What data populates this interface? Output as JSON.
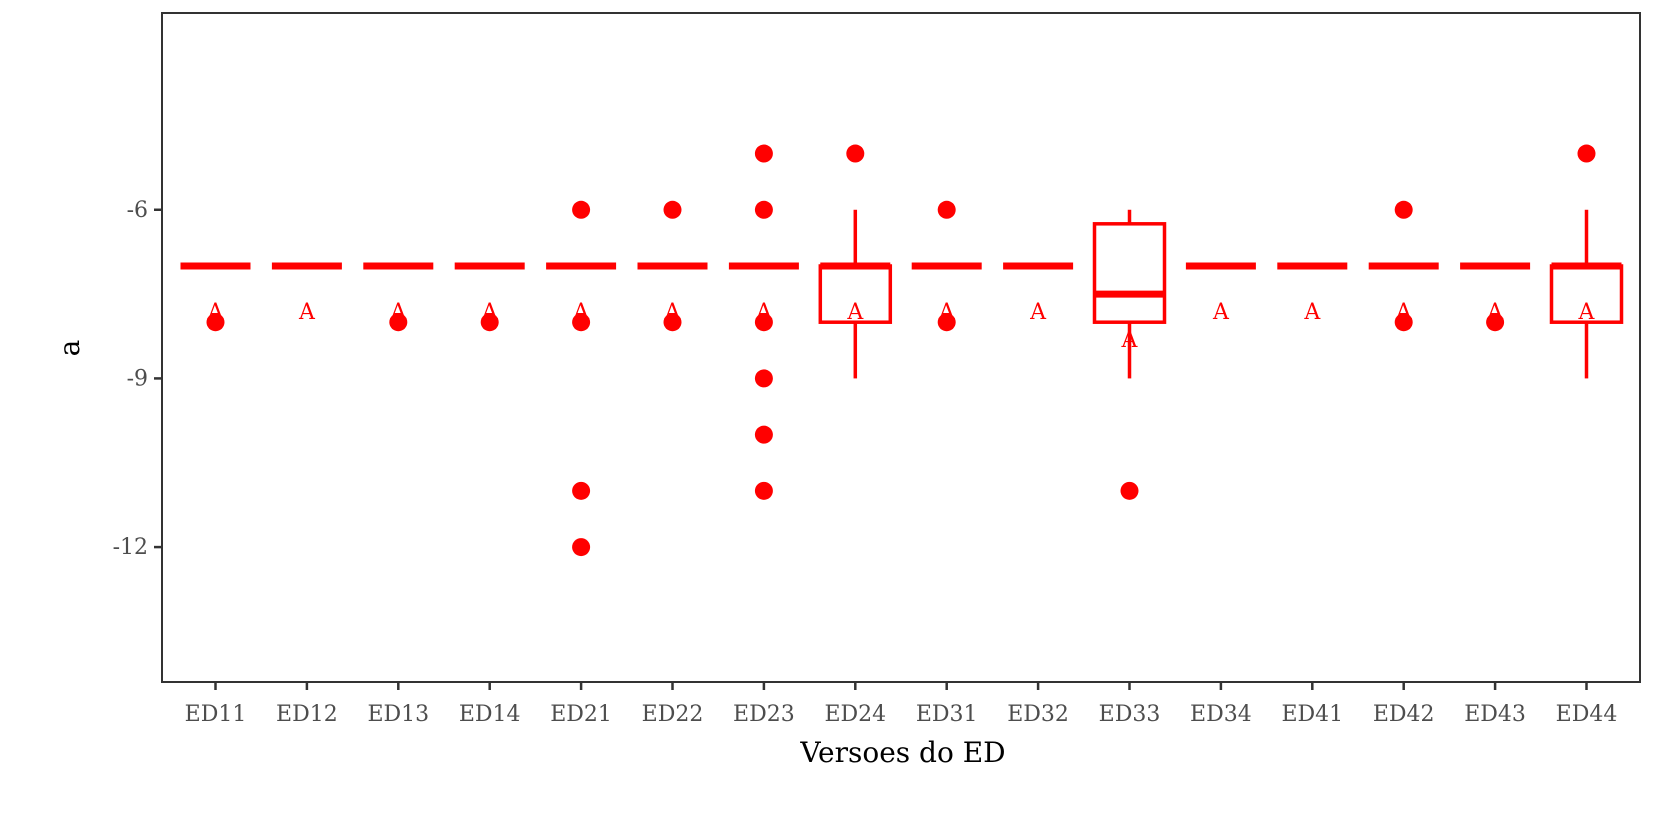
{
  "chart_data": {
    "type": "box",
    "xlabel": "Versoes do ED",
    "ylabel": "a",
    "ylim": [
      -14.4,
      -2.5
    ],
    "yticks": [
      -12,
      -9,
      -6
    ],
    "ytick_labels": [
      "-12",
      "-9",
      "-6"
    ],
    "color": "#ff0000",
    "axis_color": "#333333",
    "groups": [
      {
        "name": "ED11",
        "q1": -7,
        "median": -7,
        "q3": -7,
        "whisker_low": -7,
        "whisker_high": -7,
        "outliers": [
          -8
        ],
        "letter": "A",
        "letter_y": -7.8
      },
      {
        "name": "ED12",
        "q1": -7,
        "median": -7,
        "q3": -7,
        "whisker_low": -7,
        "whisker_high": -7,
        "outliers": [],
        "letter": "A",
        "letter_y": -7.8
      },
      {
        "name": "ED13",
        "q1": -7,
        "median": -7,
        "q3": -7,
        "whisker_low": -7,
        "whisker_high": -7,
        "outliers": [
          -8
        ],
        "letter": "A",
        "letter_y": -7.8
      },
      {
        "name": "ED14",
        "q1": -7,
        "median": -7,
        "q3": -7,
        "whisker_low": -7,
        "whisker_high": -7,
        "outliers": [
          -8
        ],
        "letter": "A",
        "letter_y": -7.8
      },
      {
        "name": "ED21",
        "q1": -7,
        "median": -7,
        "q3": -7,
        "whisker_low": -7,
        "whisker_high": -7,
        "outliers": [
          -6,
          -8,
          -11,
          -12
        ],
        "letter": "A",
        "letter_y": -7.8
      },
      {
        "name": "ED22",
        "q1": -7,
        "median": -7,
        "q3": -7,
        "whisker_low": -7,
        "whisker_high": -7,
        "outliers": [
          -6,
          -8
        ],
        "letter": "A",
        "letter_y": -7.8
      },
      {
        "name": "ED23",
        "q1": -7,
        "median": -7,
        "q3": -7,
        "whisker_low": -7,
        "whisker_high": -7,
        "outliers": [
          -5,
          -6,
          -8,
          -9,
          -10,
          -11
        ],
        "letter": "A",
        "letter_y": -7.8
      },
      {
        "name": "ED24",
        "q1": -8,
        "median": -7,
        "q3": -7,
        "whisker_low": -9,
        "whisker_high": -6,
        "outliers": [
          -5
        ],
        "letter": "A",
        "letter_y": -7.8
      },
      {
        "name": "ED31",
        "q1": -7,
        "median": -7,
        "q3": -7,
        "whisker_low": -7,
        "whisker_high": -7,
        "outliers": [
          -6,
          -8
        ],
        "letter": "A",
        "letter_y": -7.8
      },
      {
        "name": "ED32",
        "q1": -7,
        "median": -7,
        "q3": -7,
        "whisker_low": -7,
        "whisker_high": -7,
        "outliers": [],
        "letter": "A",
        "letter_y": -7.8
      },
      {
        "name": "ED33",
        "q1": -8,
        "median": -7.5,
        "q3": -6.25,
        "whisker_low": -9,
        "whisker_high": -6,
        "outliers": [
          -11
        ],
        "letter": "A",
        "letter_y": -8.3
      },
      {
        "name": "ED34",
        "q1": -7,
        "median": -7,
        "q3": -7,
        "whisker_low": -7,
        "whisker_high": -7,
        "outliers": [],
        "letter": "A",
        "letter_y": -7.8
      },
      {
        "name": "ED41",
        "q1": -7,
        "median": -7,
        "q3": -7,
        "whisker_low": -7,
        "whisker_high": -7,
        "outliers": [],
        "letter": "A",
        "letter_y": -7.8
      },
      {
        "name": "ED42",
        "q1": -7,
        "median": -7,
        "q3": -7,
        "whisker_low": -7,
        "whisker_high": -7,
        "outliers": [
          -6,
          -8
        ],
        "letter": "A",
        "letter_y": -7.8
      },
      {
        "name": "ED43",
        "q1": -7,
        "median": -7,
        "q3": -7,
        "whisker_low": -7,
        "whisker_high": -7,
        "outliers": [
          -8
        ],
        "letter": "A",
        "letter_y": -7.8
      },
      {
        "name": "ED44",
        "q1": -8,
        "median": -7,
        "q3": -7,
        "whisker_low": -9,
        "whisker_high": -6,
        "outliers": [
          -5
        ],
        "letter": "A",
        "letter_y": -7.8
      }
    ]
  }
}
